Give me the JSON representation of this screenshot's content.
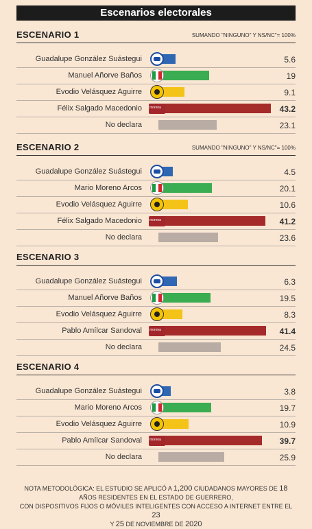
{
  "page_title": "Escenarios electorales",
  "colors": {
    "pan": "#2f67b3",
    "pri": "#3aac52",
    "prd": "#f3c318",
    "morena": "#a52b2b",
    "no_declara": "#b8aca4"
  },
  "chart_data": [
    {
      "type": "bar",
      "title": "ESCENARIO 1",
      "note": "SUMANDO \"NINGUNO\" Y NS/NC\"= 100%",
      "categories": [
        "Guadalupe González Suástegui",
        "Manuel Añorve Baños",
        "Evodio Velásquez Aguirre",
        "Félix Salgado Macedonio",
        "No declara"
      ],
      "parties": [
        "pan",
        "pri",
        "prd",
        "morena",
        "none"
      ],
      "values": [
        5.6,
        19,
        9.1,
        43.2,
        23.1
      ],
      "value_labels": [
        "5.6",
        "19",
        "9.1",
        "43.2",
        "23.1"
      ],
      "leader": 3
    },
    {
      "type": "bar",
      "title": "ESCENARIO 2",
      "note": "SUMANDO \"NINGUNO\" Y NS/NC\"= 100%",
      "categories": [
        "Guadalupe González Suástegui",
        "Mario Moreno Arcos",
        "Evodio Velásquez Aguirre",
        "Félix Salgado Macedonio",
        "No declara"
      ],
      "parties": [
        "pan",
        "pri",
        "prd",
        "morena",
        "none"
      ],
      "values": [
        4.5,
        20.1,
        10.6,
        41.2,
        23.6
      ],
      "value_labels": [
        "4.5",
        "20.1",
        "10.6",
        "41.2",
        "23.6"
      ],
      "leader": 3
    },
    {
      "type": "bar",
      "title": "ESCENARIO 3",
      "note": "",
      "categories": [
        "Guadalupe González Suástegui",
        "Manuel Añorve Baños",
        "Evodio Velásquez Aguirre",
        "Pablo Amílcar Sandoval",
        "No declara"
      ],
      "parties": [
        "pan",
        "pri",
        "prd",
        "morena",
        "none"
      ],
      "values": [
        6.3,
        19.5,
        8.3,
        41.4,
        24.5
      ],
      "value_labels": [
        "6.3",
        "19.5",
        "8.3",
        "41.4",
        "24.5"
      ],
      "leader": 3
    },
    {
      "type": "bar",
      "title": "ESCENARIO 4",
      "note": "",
      "categories": [
        "Guadalupe González Suástegui",
        "Mario Moreno Arcos",
        "Evodio Velásquez Aguirre",
        "Pablo Amílcar Sandoval",
        "No declara"
      ],
      "parties": [
        "pan",
        "pri",
        "prd",
        "morena",
        "none"
      ],
      "values": [
        3.8,
        19.7,
        10.9,
        39.7,
        25.9
      ],
      "value_labels": [
        "3.8",
        "19.7",
        "10.9",
        "39.7",
        "25.9"
      ],
      "leader": 3
    }
  ],
  "footer": {
    "line1_a": "NOTA METODOLÓGICA: EL ESTUDIO SE APLICÓ A ",
    "line1_num": "1,200",
    "line1_b": " CIUDADANOS MAYORES DE ",
    "line1_age": "18",
    "line2": "AÑOS RESIDENTES EN EL ESTADO DE GUERRERO,",
    "line3_a": "CON DISPOSITIVOS FIJOS O MÓVILES INTELIGENTES CON ACCESO A INTERNET ENTRE EL ",
    "line3_d1": "23",
    "line4_a": "Y ",
    "line4_d2": "25",
    "line4_b": " DE NOVIEMBRE DE ",
    "line4_year": "2020"
  }
}
